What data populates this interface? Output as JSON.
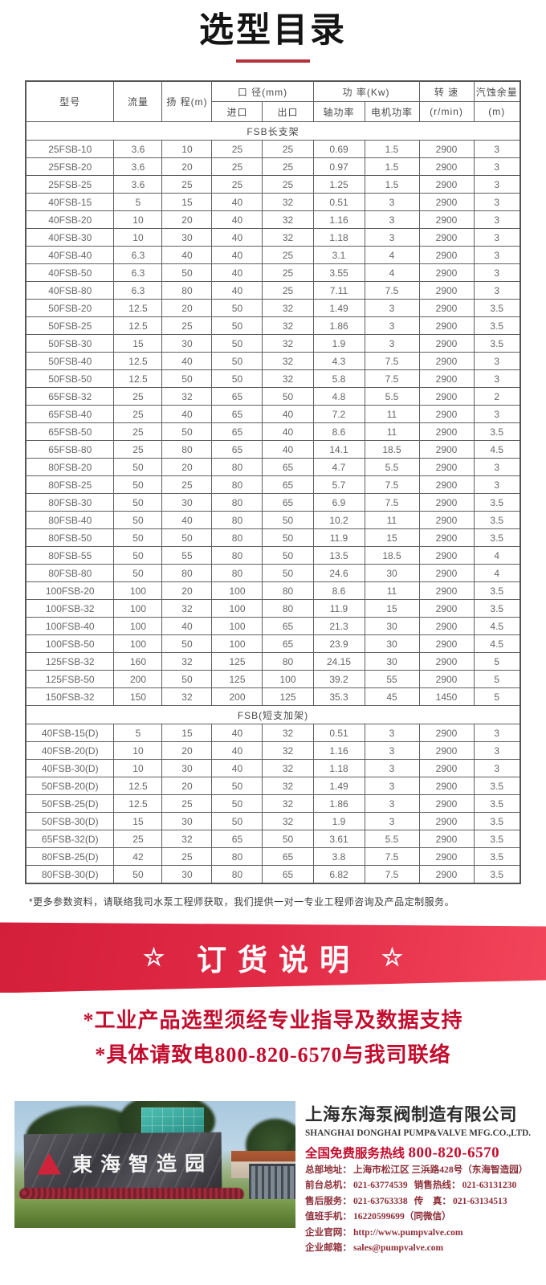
{
  "page": {
    "title": "选型目录"
  },
  "theme": {
    "accent_red": "#c9243f",
    "banner_gradient_left": "#d41f3a",
    "banner_gradient_right": "#f2455a",
    "notice_red": "#c30d2e",
    "footer_maroon": "#8d2e38",
    "table_border": "#606060"
  },
  "table": {
    "headers": {
      "model": "型号",
      "flow": "流量",
      "head": "扬 程(m)",
      "diameter": "口 径(mm)",
      "inlet": "进口",
      "outlet": "出口",
      "power": "功 率(Kw)",
      "shaft_power": "轴功率",
      "motor_power": "电机功率",
      "speed": "转 速",
      "speed_unit": "(r/min)",
      "npsh": "汽蚀余量",
      "npsh_unit": "(m)"
    },
    "sections": [
      {
        "name": "FSB长支架",
        "rows": [
          [
            "25FSB-10",
            "3.6",
            "10",
            "25",
            "25",
            "0.69",
            "1.5",
            "2900",
            "3"
          ],
          [
            "25FSB-20",
            "3.6",
            "20",
            "25",
            "25",
            "0.97",
            "1.5",
            "2900",
            "3"
          ],
          [
            "25FSB-25",
            "3.6",
            "25",
            "25",
            "25",
            "1.25",
            "1.5",
            "2900",
            "3"
          ],
          [
            "40FSB-15",
            "5",
            "15",
            "40",
            "32",
            "0.51",
            "3",
            "2900",
            "3"
          ],
          [
            "40FSB-20",
            "10",
            "20",
            "40",
            "32",
            "1.16",
            "3",
            "2900",
            "3"
          ],
          [
            "40FSB-30",
            "10",
            "30",
            "40",
            "32",
            "1.18",
            "3",
            "2900",
            "3"
          ],
          [
            "40FSB-40",
            "6.3",
            "40",
            "40",
            "25",
            "3.1",
            "4",
            "2900",
            "3"
          ],
          [
            "40FSB-50",
            "6.3",
            "50",
            "40",
            "25",
            "3.55",
            "4",
            "2900",
            "3"
          ],
          [
            "40FSB-80",
            "6.3",
            "80",
            "40",
            "25",
            "7.11",
            "7.5",
            "2900",
            "3"
          ],
          [
            "50FSB-20",
            "12.5",
            "20",
            "50",
            "32",
            "1.49",
            "3",
            "2900",
            "3.5"
          ],
          [
            "50FSB-25",
            "12.5",
            "25",
            "50",
            "32",
            "1.86",
            "3",
            "2900",
            "3.5"
          ],
          [
            "50FSB-30",
            "15",
            "30",
            "50",
            "32",
            "1.9",
            "3",
            "2900",
            "3.5"
          ],
          [
            "50FSB-40",
            "12.5",
            "40",
            "50",
            "32",
            "4.3",
            "7.5",
            "2900",
            "3"
          ],
          [
            "50FSB-50",
            "12.5",
            "50",
            "50",
            "32",
            "5.8",
            "7.5",
            "2900",
            "3"
          ],
          [
            "65FSB-32",
            "25",
            "32",
            "65",
            "50",
            "4.8",
            "5.5",
            "2900",
            "2"
          ],
          [
            "65FSB-40",
            "25",
            "40",
            "65",
            "40",
            "7.2",
            "11",
            "2900",
            "3"
          ],
          [
            "65FSB-50",
            "25",
            "50",
            "65",
            "40",
            "8.6",
            "11",
            "2900",
            "3.5"
          ],
          [
            "65FSB-80",
            "25",
            "80",
            "65",
            "40",
            "14.1",
            "18.5",
            "2900",
            "4.5"
          ],
          [
            "80FSB-20",
            "50",
            "20",
            "80",
            "65",
            "4.7",
            "5.5",
            "2900",
            "3"
          ],
          [
            "80FSB-25",
            "50",
            "25",
            "80",
            "65",
            "5.7",
            "7.5",
            "2900",
            "3"
          ],
          [
            "80FSB-30",
            "50",
            "30",
            "80",
            "65",
            "6.9",
            "7.5",
            "2900",
            "3.5"
          ],
          [
            "80FSB-40",
            "50",
            "40",
            "80",
            "50",
            "10.2",
            "11",
            "2900",
            "3.5"
          ],
          [
            "80FSB-50",
            "50",
            "50",
            "80",
            "50",
            "11.9",
            "15",
            "2900",
            "3.5"
          ],
          [
            "80FSB-55",
            "50",
            "55",
            "80",
            "50",
            "13.5",
            "18.5",
            "2900",
            "4"
          ],
          [
            "80FSB-80",
            "50",
            "80",
            "80",
            "50",
            "24.6",
            "30",
            "2900",
            "4"
          ],
          [
            "100FSB-20",
            "100",
            "20",
            "100",
            "80",
            "8.6",
            "11",
            "2900",
            "3.5"
          ],
          [
            "100FSB-32",
            "100",
            "32",
            "100",
            "80",
            "11.9",
            "15",
            "2900",
            "3.5"
          ],
          [
            "100FSB-40",
            "100",
            "40",
            "100",
            "65",
            "21.3",
            "30",
            "2900",
            "4.5"
          ],
          [
            "100FSB-50",
            "100",
            "50",
            "100",
            "65",
            "23.9",
            "30",
            "2900",
            "4.5"
          ],
          [
            "125FSB-32",
            "160",
            "32",
            "125",
            "80",
            "24.15",
            "30",
            "2900",
            "5"
          ],
          [
            "125FSB-50",
            "200",
            "50",
            "125",
            "100",
            "39.2",
            "55",
            "2900",
            "5"
          ],
          [
            "150FSB-32",
            "150",
            "32",
            "200",
            "125",
            "35.3",
            "45",
            "1450",
            "5"
          ]
        ]
      },
      {
        "name": "FSB(短支加架)",
        "rows": [
          [
            "40FSB-15(D)",
            "5",
            "15",
            "40",
            "32",
            "0.51",
            "3",
            "2900",
            "3"
          ],
          [
            "40FSB-20(D)",
            "10",
            "20",
            "40",
            "32",
            "1.16",
            "3",
            "2900",
            "3"
          ],
          [
            "40FSB-30(D)",
            "10",
            "30",
            "40",
            "32",
            "1.18",
            "3",
            "2900",
            "3"
          ],
          [
            "50FSB-20(D)",
            "12.5",
            "20",
            "50",
            "32",
            "1.49",
            "3",
            "2900",
            "3.5"
          ],
          [
            "50FSB-25(D)",
            "12.5",
            "25",
            "50",
            "32",
            "1.86",
            "3",
            "2900",
            "3.5"
          ],
          [
            "50FSB-30(D)",
            "15",
            "30",
            "50",
            "32",
            "1.9",
            "3",
            "2900",
            "3.5"
          ],
          [
            "65FSB-32(D)",
            "25",
            "32",
            "65",
            "50",
            "3.61",
            "5.5",
            "2900",
            "3.5"
          ],
          [
            "80FSB-25(D)",
            "42",
            "25",
            "80",
            "65",
            "3.8",
            "7.5",
            "2900",
            "3.5"
          ],
          [
            "80FSB-30(D)",
            "50",
            "30",
            "80",
            "65",
            "6.82",
            "7.5",
            "2900",
            "3.5"
          ]
        ]
      }
    ]
  },
  "footnote": "*更多参数资料，请联络我司水泵工程师获取，我们提供一对一专业工程师咨询及产品定制服务。",
  "banner": {
    "star_left": "☆",
    "title": "订货说明",
    "star_right": "☆"
  },
  "notice": {
    "line1": "*工业产品选型须经专业指导及数据支持",
    "line2": "*具体请致电800-820-6570与我司联络"
  },
  "footer": {
    "photo_sign": "東海智造园",
    "company_cn": "上海东海泵阀制造有限公司",
    "company_en": "SHANGHAI DONGHAI PUMP&VALVE MFG.CO.,LTD.",
    "hotline_label": "全国免费服务热线",
    "hotline_number": "800-820-6570",
    "details": [
      {
        "label": "总部地址：",
        "value": "上海市松江区 三浜路428号（东海智造园）"
      },
      {
        "label": "前台总机：",
        "value": "021-63774539",
        "label2": "销售热线：",
        "value2": "021-63131230"
      },
      {
        "label": "售后服务：",
        "value": "021-63763338",
        "label2": "传　真：",
        "value2": "021-63134513"
      },
      {
        "label": "值班手机：",
        "value": "16220599699（同微信）"
      },
      {
        "label": "企业官网：",
        "value": "http://www.pumpvalve.com"
      },
      {
        "label": "企业邮箱：",
        "value": "sales@pumpvalve.com"
      }
    ]
  }
}
